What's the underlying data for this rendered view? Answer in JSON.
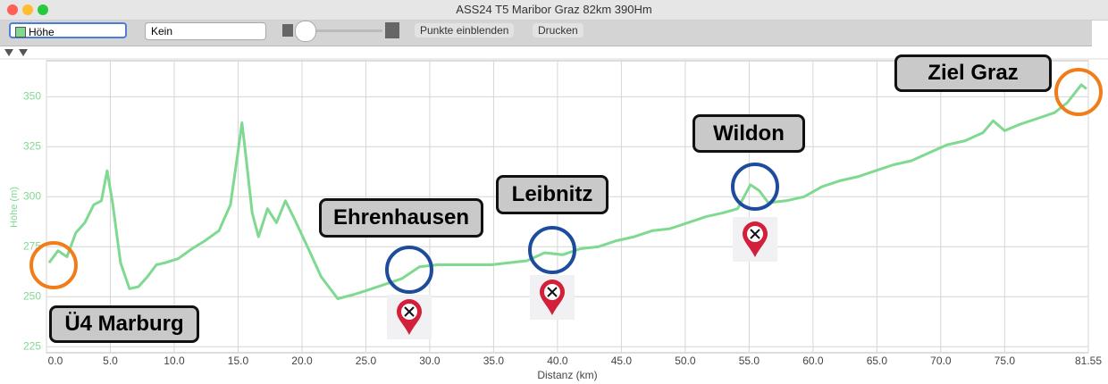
{
  "window": {
    "title": "ASS24 T5 Maribor Graz 82km 390Hm"
  },
  "toolbar": {
    "select_1": "Höhe",
    "select_2": "Kein",
    "button_1": "Punkte einblenden",
    "button_2": "Drucken"
  },
  "chart_data": {
    "type": "line",
    "x_label": "Distanz (km)",
    "y_label": "Höhe (m)",
    "x": [
      0.2,
      0.9,
      1.6,
      2.3,
      3.0,
      3.7,
      4.3,
      4.75,
      5.2,
      5.8,
      6.5,
      7.2,
      7.9,
      8.6,
      9.3,
      10.3,
      11.4,
      12.4,
      13.5,
      14.4,
      15.0,
      15.3,
      15.6,
      16.1,
      16.6,
      17.3,
      18.0,
      18.7,
      19.4,
      20.5,
      21.5,
      22.8,
      24.0,
      25.0,
      26.4,
      27.8,
      29.2,
      30.6,
      32.0,
      33.4,
      34.8,
      36.2,
      37.6,
      39.0,
      40.4,
      41.8,
      43.2,
      44.6,
      46.0,
      47.4,
      48.8,
      50.2,
      51.6,
      53.0,
      54.1,
      55.1,
      55.8,
      56.5,
      57.9,
      59.3,
      60.7,
      62.1,
      63.5,
      64.9,
      66.3,
      67.7,
      69.1,
      70.5,
      71.9,
      73.3,
      74.1,
      75.0,
      76.1,
      77.5,
      78.9,
      79.9,
      81.0,
      81.4
    ],
    "values": [
      267,
      273,
      270,
      282,
      287,
      296,
      298,
      313,
      296,
      267,
      254,
      255,
      260,
      266,
      267,
      269,
      274,
      278,
      283,
      296,
      323,
      337,
      321,
      292,
      280,
      294,
      287,
      298,
      289,
      274,
      260,
      249,
      251,
      253,
      256,
      259,
      265,
      266,
      266,
      266,
      266,
      267,
      268,
      272,
      271,
      274,
      275,
      278,
      280,
      283,
      284,
      287,
      290,
      292,
      294,
      306,
      303,
      297,
      298,
      300,
      305,
      308,
      310,
      313,
      316,
      318,
      322,
      326,
      328,
      332,
      338,
      333,
      336,
      339,
      342,
      347,
      356,
      354
    ],
    "color": "#7fd991",
    "xlim": [
      0,
      81.55
    ],
    "ylim": [
      222,
      368
    ],
    "xticks": [
      {
        "value": 0,
        "label": "0.0"
      },
      {
        "value": 5,
        "label": "5.0"
      },
      {
        "value": 10,
        "label": "10.0"
      },
      {
        "value": 15,
        "label": "15.0"
      },
      {
        "value": 20,
        "label": "20.0"
      },
      {
        "value": 25,
        "label": "25.0"
      },
      {
        "value": 30,
        "label": "30.0"
      },
      {
        "value": 35,
        "label": "35.0"
      },
      {
        "value": 40,
        "label": "40.0"
      },
      {
        "value": 45,
        "label": "45.0"
      },
      {
        "value": 50,
        "label": "50.0"
      },
      {
        "value": 55,
        "label": "55.0"
      },
      {
        "value": 60,
        "label": "60.0"
      },
      {
        "value": 65,
        "label": "65.0"
      },
      {
        "value": 70,
        "label": "70.0"
      },
      {
        "value": 75,
        "label": "75.0"
      },
      81.55
    ],
    "yticks": [
      225,
      250,
      275,
      300,
      325,
      350
    ],
    "grid": true,
    "annotations": [
      "Ü4 Marburg",
      "Ehrenhausen",
      "Leibnitz",
      "Wildon",
      "Ziel Graz"
    ]
  }
}
